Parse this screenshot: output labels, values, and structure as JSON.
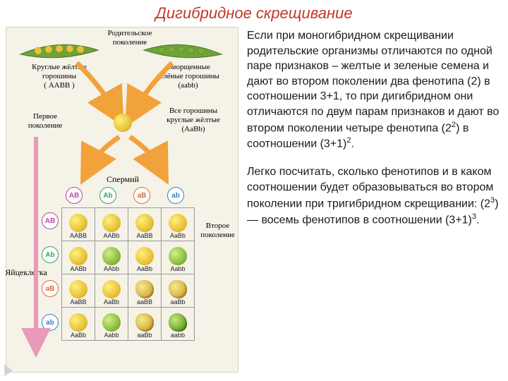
{
  "colors": {
    "title": "#c0392b",
    "text": "#1a1a1a",
    "arrow": "#f2a23a",
    "diagram_bg": "#f5f2e8",
    "gamete_border": {
      "AB": "#b44a9e",
      "Ab": "#33a06b",
      "aB": "#d96b3a",
      "ab": "#3a7fc4"
    }
  },
  "title": "Дигибридное скрещивание",
  "para1_pre": "Если при моногибридном скрещивании родительские организмы  отличаются по одной паре признаков – желтые и зеленые семена и дают во втором поколении  два фенотипа (2) в соотношении 3+1, то при дигибридном они отличаются по двум парам признаков и дают во втором поколении четыре фенотипа (2",
  "para1_sup": "2",
  "para1_mid": ") в соотношении (3+1)",
  "para1_sup2": "2",
  "para1_post": ".",
  "para2_pre": "Легко посчитать, сколько фенотипов и в каком соотношении будет образовываться во втором поколении при тригибридном скрещивании: (2",
  "para2_sup": "3",
  "para2_mid": ") — восемь фенотипов в соотношении (3+1)",
  "para2_sup2": "3",
  "para2_post": ".",
  "diagram": {
    "lbl_parent_gen": "Родительское\nпоколение",
    "lbl_p1": "Круглые жёлтые\nгорошины\n( AABB )",
    "lbl_p2": "Сморщенные\nзелёные горошины\n(aabb)",
    "lbl_first_gen": "Первое\nпоколение",
    "lbl_f1": "Все горошины\nкруглые жёлтые\n(AaBb)",
    "lbl_sperm": "Спермий",
    "lbl_second_gen": "Второе\nпоколение",
    "lbl_egg": "Яйцеклетка",
    "gametes": [
      "AB",
      "Ab",
      "aB",
      "ab"
    ],
    "punnett": {
      "cells": [
        [
          {
            "g": "AABB",
            "c": "y"
          },
          {
            "g": "AABb",
            "c": "y"
          },
          {
            "g": "AaBB",
            "c": "y"
          },
          {
            "g": "AaBb",
            "c": "y"
          }
        ],
        [
          {
            "g": "AABb",
            "c": "y"
          },
          {
            "g": "AAbb",
            "c": "g"
          },
          {
            "g": "AaBb",
            "c": "y"
          },
          {
            "g": "Aabb",
            "c": "g"
          }
        ],
        [
          {
            "g": "AaBB",
            "c": "y"
          },
          {
            "g": "AaBb",
            "c": "y"
          },
          {
            "g": "aaBB",
            "c": "yw"
          },
          {
            "g": "aaBb",
            "c": "yw"
          }
        ],
        [
          {
            "g": "AaBb",
            "c": "y"
          },
          {
            "g": "Aabb",
            "c": "g"
          },
          {
            "g": "aaBb",
            "c": "yw"
          },
          {
            "g": "aabb",
            "c": "gw"
          }
        ]
      ]
    }
  }
}
